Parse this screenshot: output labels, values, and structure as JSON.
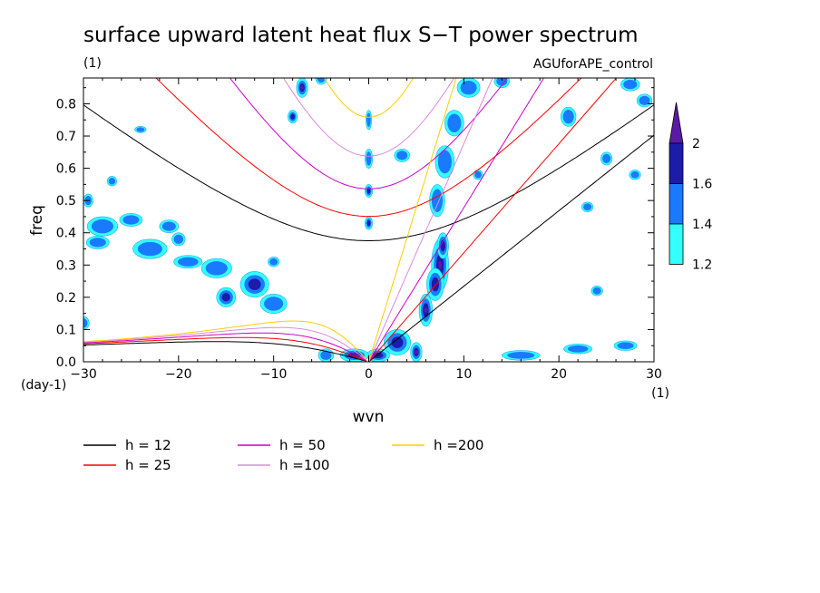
{
  "chart_data": {
    "type": "contour",
    "title": "surface upward latent heat flux S−T power spectrum",
    "subtitle_left": "(1)",
    "subtitle_right": "AGUforAPE_control",
    "xlabel": "wvn",
    "ylabel": "freq",
    "x_unit": "(1)",
    "y_unit": "(day-1)",
    "xlim": [
      -30,
      30
    ],
    "ylim": [
      0,
      0.88
    ],
    "x_ticks": [
      "−30",
      "−20",
      "−10",
      "0",
      "10",
      "20",
      "30"
    ],
    "x_tick_values": [
      -30,
      -20,
      -10,
      0,
      10,
      20,
      30
    ],
    "y_ticks": [
      "0.0",
      "0.1",
      "0.2",
      "0.3",
      "0.4",
      "0.5",
      "0.6",
      "0.7",
      "0.8"
    ],
    "y_tick_values": [
      0,
      0.1,
      0.2,
      0.3,
      0.4,
      0.5,
      0.6,
      0.7,
      0.8
    ],
    "colorbar": {
      "levels": [
        "1.2",
        "1.4",
        "1.6",
        "2"
      ],
      "colors": [
        "#33ffff",
        "#1a7aff",
        "#1c1ca8",
        "#5a1aa6"
      ]
    },
    "dispersion_curves": [
      {
        "label": "h = 12",
        "h": 12,
        "color": "#000000"
      },
      {
        "label": "h = 25",
        "h": 25,
        "color": "#ff0000"
      },
      {
        "label": "h = 50",
        "h": 50,
        "color": "#cc00cc"
      },
      {
        "label": "h =100",
        "h": 100,
        "color": "#dd88dd"
      },
      {
        "label": "h =200",
        "h": 200,
        "color": "#ffcc00"
      }
    ],
    "blobs": [
      {
        "k": 7.5,
        "f": 0.3,
        "rk": 0.9,
        "rf": 0.08,
        "lv": 3
      },
      {
        "k": 6.0,
        "f": 0.16,
        "rk": 0.7,
        "rf": 0.05,
        "lv": 3
      },
      {
        "k": 5.0,
        "f": 0.03,
        "rk": 0.6,
        "rf": 0.03,
        "lv": 3
      },
      {
        "k": 7.0,
        "f": 0.24,
        "rk": 0.9,
        "rf": 0.05,
        "lv": 2
      },
      {
        "k": 7.8,
        "f": 0.36,
        "rk": 0.6,
        "rf": 0.04,
        "lv": 2
      },
      {
        "k": 7.2,
        "f": 0.5,
        "rk": 0.8,
        "rf": 0.05,
        "lv": 1
      },
      {
        "k": 8.0,
        "f": 0.62,
        "rk": 1.0,
        "rf": 0.05,
        "lv": 1
      },
      {
        "k": 9.0,
        "f": 0.74,
        "rk": 1.0,
        "rf": 0.04,
        "lv": 1
      },
      {
        "k": 10.5,
        "f": 0.85,
        "rk": 1.2,
        "rf": 0.03,
        "lv": 1
      },
      {
        "k": 3.0,
        "f": 0.06,
        "rk": 1.4,
        "rf": 0.04,
        "lv": 2
      },
      {
        "k": 1.0,
        "f": 0.02,
        "rk": 1.2,
        "rf": 0.02,
        "lv": 2
      },
      {
        "k": -1.5,
        "f": 0.02,
        "rk": 1.5,
        "rf": 0.02,
        "lv": 2
      },
      {
        "k": -4.5,
        "f": 0.02,
        "rk": 0.8,
        "rf": 0.02,
        "lv": 1
      },
      {
        "k": 0.0,
        "f": 0.43,
        "rk": 0.4,
        "rf": 0.02,
        "lv": 2
      },
      {
        "k": 0.0,
        "f": 0.53,
        "rk": 0.4,
        "rf": 0.02,
        "lv": 2
      },
      {
        "k": 0.0,
        "f": 0.63,
        "rk": 0.4,
        "rf": 0.03,
        "lv": 1
      },
      {
        "k": 0.0,
        "f": 0.75,
        "rk": 0.3,
        "rf": 0.03,
        "lv": 1
      },
      {
        "k": -7.0,
        "f": 0.85,
        "rk": 0.6,
        "rf": 0.03,
        "lv": 3
      },
      {
        "k": -8.0,
        "f": 0.76,
        "rk": 0.5,
        "rf": 0.02,
        "lv": 2
      },
      {
        "k": -12.0,
        "f": 0.24,
        "rk": 1.5,
        "rf": 0.04,
        "lv": 2
      },
      {
        "k": -15.0,
        "f": 0.2,
        "rk": 1.0,
        "rf": 0.03,
        "lv": 2
      },
      {
        "k": -10.0,
        "f": 0.18,
        "rk": 1.4,
        "rf": 0.03,
        "lv": 1
      },
      {
        "k": -16.0,
        "f": 0.29,
        "rk": 1.6,
        "rf": 0.03,
        "lv": 1
      },
      {
        "k": -19.0,
        "f": 0.31,
        "rk": 1.5,
        "rf": 0.02,
        "lv": 1
      },
      {
        "k": -23.0,
        "f": 0.35,
        "rk": 1.8,
        "rf": 0.03,
        "lv": 1
      },
      {
        "k": -28.0,
        "f": 0.42,
        "rk": 1.6,
        "rf": 0.03,
        "lv": 1
      },
      {
        "k": -25.0,
        "f": 0.44,
        "rk": 1.2,
        "rf": 0.02,
        "lv": 1
      },
      {
        "k": -21.0,
        "f": 0.42,
        "rk": 1.0,
        "rf": 0.02,
        "lv": 1
      },
      {
        "k": -28.5,
        "f": 0.37,
        "rk": 1.2,
        "rf": 0.02,
        "lv": 1
      },
      {
        "k": -29.5,
        "f": 0.5,
        "rk": 0.5,
        "rf": 0.02,
        "lv": 1
      },
      {
        "k": -24.0,
        "f": 0.72,
        "rk": 0.6,
        "rf": 0.01,
        "lv": 1
      },
      {
        "k": -20.0,
        "f": 0.38,
        "rk": 0.7,
        "rf": 0.02,
        "lv": 1
      },
      {
        "k": -27.0,
        "f": 0.56,
        "rk": 0.5,
        "rf": 0.015,
        "lv": 1
      },
      {
        "k": -10.0,
        "f": 0.31,
        "rk": 0.6,
        "rf": 0.015,
        "lv": 1
      },
      {
        "k": -30.0,
        "f": 0.12,
        "rk": 0.6,
        "rf": 0.02,
        "lv": 1
      },
      {
        "k": -5.0,
        "f": 0.88,
        "rk": 0.6,
        "rf": 0.02,
        "lv": 1
      },
      {
        "k": 3.5,
        "f": 0.64,
        "rk": 0.8,
        "rf": 0.02,
        "lv": 1
      },
      {
        "k": 11.5,
        "f": 0.58,
        "rk": 0.5,
        "rf": 0.015,
        "lv": 1
      },
      {
        "k": 16.0,
        "f": 0.02,
        "rk": 2.0,
        "rf": 0.015,
        "lv": 1
      },
      {
        "k": 22.0,
        "f": 0.04,
        "rk": 1.5,
        "rf": 0.015,
        "lv": 1
      },
      {
        "k": 27.0,
        "f": 0.05,
        "rk": 1.2,
        "rf": 0.015,
        "lv": 1
      },
      {
        "k": 21.0,
        "f": 0.76,
        "rk": 0.8,
        "rf": 0.03,
        "lv": 1
      },
      {
        "k": 25.0,
        "f": 0.63,
        "rk": 0.6,
        "rf": 0.02,
        "lv": 1
      },
      {
        "k": 27.5,
        "f": 0.86,
        "rk": 1.0,
        "rf": 0.02,
        "lv": 1
      },
      {
        "k": 29.0,
        "f": 0.81,
        "rk": 0.8,
        "rf": 0.02,
        "lv": 1
      },
      {
        "k": 23.0,
        "f": 0.48,
        "rk": 0.6,
        "rf": 0.015,
        "lv": 1
      },
      {
        "k": 28.0,
        "f": 0.58,
        "rk": 0.6,
        "rf": 0.015,
        "lv": 1
      },
      {
        "k": 14.0,
        "f": 0.87,
        "rk": 0.8,
        "rf": 0.02,
        "lv": 1
      },
      {
        "k": 24.0,
        "f": 0.22,
        "rk": 0.6,
        "rf": 0.015,
        "lv": 1
      }
    ]
  }
}
